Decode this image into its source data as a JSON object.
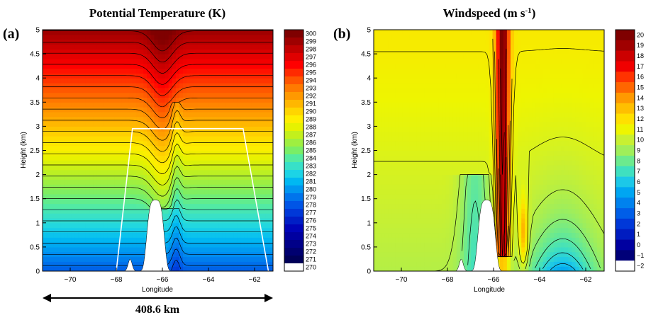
{
  "chart_data": [
    {
      "type": "heatmap",
      "panel_label": "(a)",
      "title": "Potential Temperature (K)",
      "xlabel": "Longitude",
      "ylabel": "Height (km)",
      "xlim": [
        -71.2,
        -61.2
      ],
      "ylim": [
        0,
        5
      ],
      "xticks": [
        -70,
        -68,
        -66,
        -64,
        -62
      ],
      "xtick_labels": [
        "−70",
        "−68",
        "−66",
        "−64",
        "−62"
      ],
      "yticks": [
        0,
        0.5,
        1,
        1.5,
        2,
        2.5,
        3,
        3.5,
        4,
        4.5,
        5
      ],
      "ytick_labels": [
        "0",
        "0.5",
        "1",
        "1.5",
        "2",
        "2.5",
        "3",
        "3.5",
        "4",
        "4.5",
        "5"
      ],
      "colorbar_levels": [
        "300",
        "299",
        "298",
        "297",
        "296",
        "295",
        "294",
        "293",
        "292",
        "291",
        "290",
        "289",
        "288",
        "287",
        "286",
        "285",
        "284",
        "283",
        "282",
        "281",
        "280",
        "279",
        "278",
        "277",
        "276",
        "275",
        "274",
        "273",
        "272",
        "271",
        "270"
      ],
      "colorbar_colors": [
        "#7f0000",
        "#9e0000",
        "#c00000",
        "#e00000",
        "#ff0000",
        "#ff2a00",
        "#ff5500",
        "#ff7a00",
        "#ff9900",
        "#ffb700",
        "#ffd500",
        "#ffee00",
        "#e6f200",
        "#c3f01c",
        "#9fef40",
        "#7aee66",
        "#55eba0",
        "#38e0c8",
        "#1cd4e6",
        "#00b8f2",
        "#0096f0",
        "#0074ec",
        "#0055e6",
        "#0038d8",
        "#001ec6",
        "#0004b8",
        "#0000a0",
        "#000088",
        "#000070",
        "#000058",
        "#ffffff"
      ],
      "field": "potential_temperature",
      "terrain_peak": {
        "lon": -66.3,
        "height_km": 1.47
      },
      "flight_track": {
        "x": [
          -68.0,
          -67.3,
          -62.5,
          -61.4
        ],
        "y": [
          0,
          2.95,
          2.95,
          0
        ]
      },
      "bottom_scale": {
        "label": "408.6 km",
        "x_start": -71.2,
        "x_end": -61.2
      }
    },
    {
      "type": "heatmap",
      "panel_label": "(b)",
      "title": "Windspeed (m s",
      "title_sup": "-1",
      "title_end": ")",
      "xlabel": "Longitude",
      "ylabel": "Height (km)",
      "xlim": [
        -71.2,
        -61.2
      ],
      "ylim": [
        0,
        5
      ],
      "xticks": [
        -70,
        -68,
        -66,
        -64,
        -62
      ],
      "xtick_labels": [
        "−70",
        "−68",
        "−66",
        "−64",
        "−62"
      ],
      "yticks": [
        0,
        0.5,
        1,
        1.5,
        2,
        2.5,
        3,
        3.5,
        4,
        4.5,
        5
      ],
      "ytick_labels": [
        "0",
        "0.5",
        "1",
        "1.5",
        "2",
        "2.5",
        "3",
        "3.5",
        "4",
        "4.5",
        "5"
      ],
      "colorbar_levels": [
        "20",
        "19",
        "18",
        "17",
        "16",
        "15",
        "14",
        "13",
        "12",
        "11",
        "10",
        "9",
        "8",
        "7",
        "6",
        "5",
        "4",
        "3",
        "2",
        "1",
        "0",
        "−1",
        "−2"
      ],
      "colorbar_colors": [
        "#7f0000",
        "#a00000",
        "#cc0000",
        "#f00000",
        "#ff3300",
        "#ff6600",
        "#ff9900",
        "#ffbf00",
        "#ffe000",
        "#eef500",
        "#c8f032",
        "#a0ee5a",
        "#6cea8e",
        "#3fe0c0",
        "#1cc8e8",
        "#00a6f2",
        "#0082ee",
        "#005ee8",
        "#0038d8",
        "#001cc0",
        "#0000a0",
        "#000078",
        "#ffffff"
      ],
      "field": "windspeed",
      "terrain_peak": {
        "lon": -66.3,
        "height_km": 1.47
      }
    }
  ],
  "colors": {
    "terrain": "#ffffff",
    "contour": "#000000",
    "flight_track": "#ffffff"
  }
}
